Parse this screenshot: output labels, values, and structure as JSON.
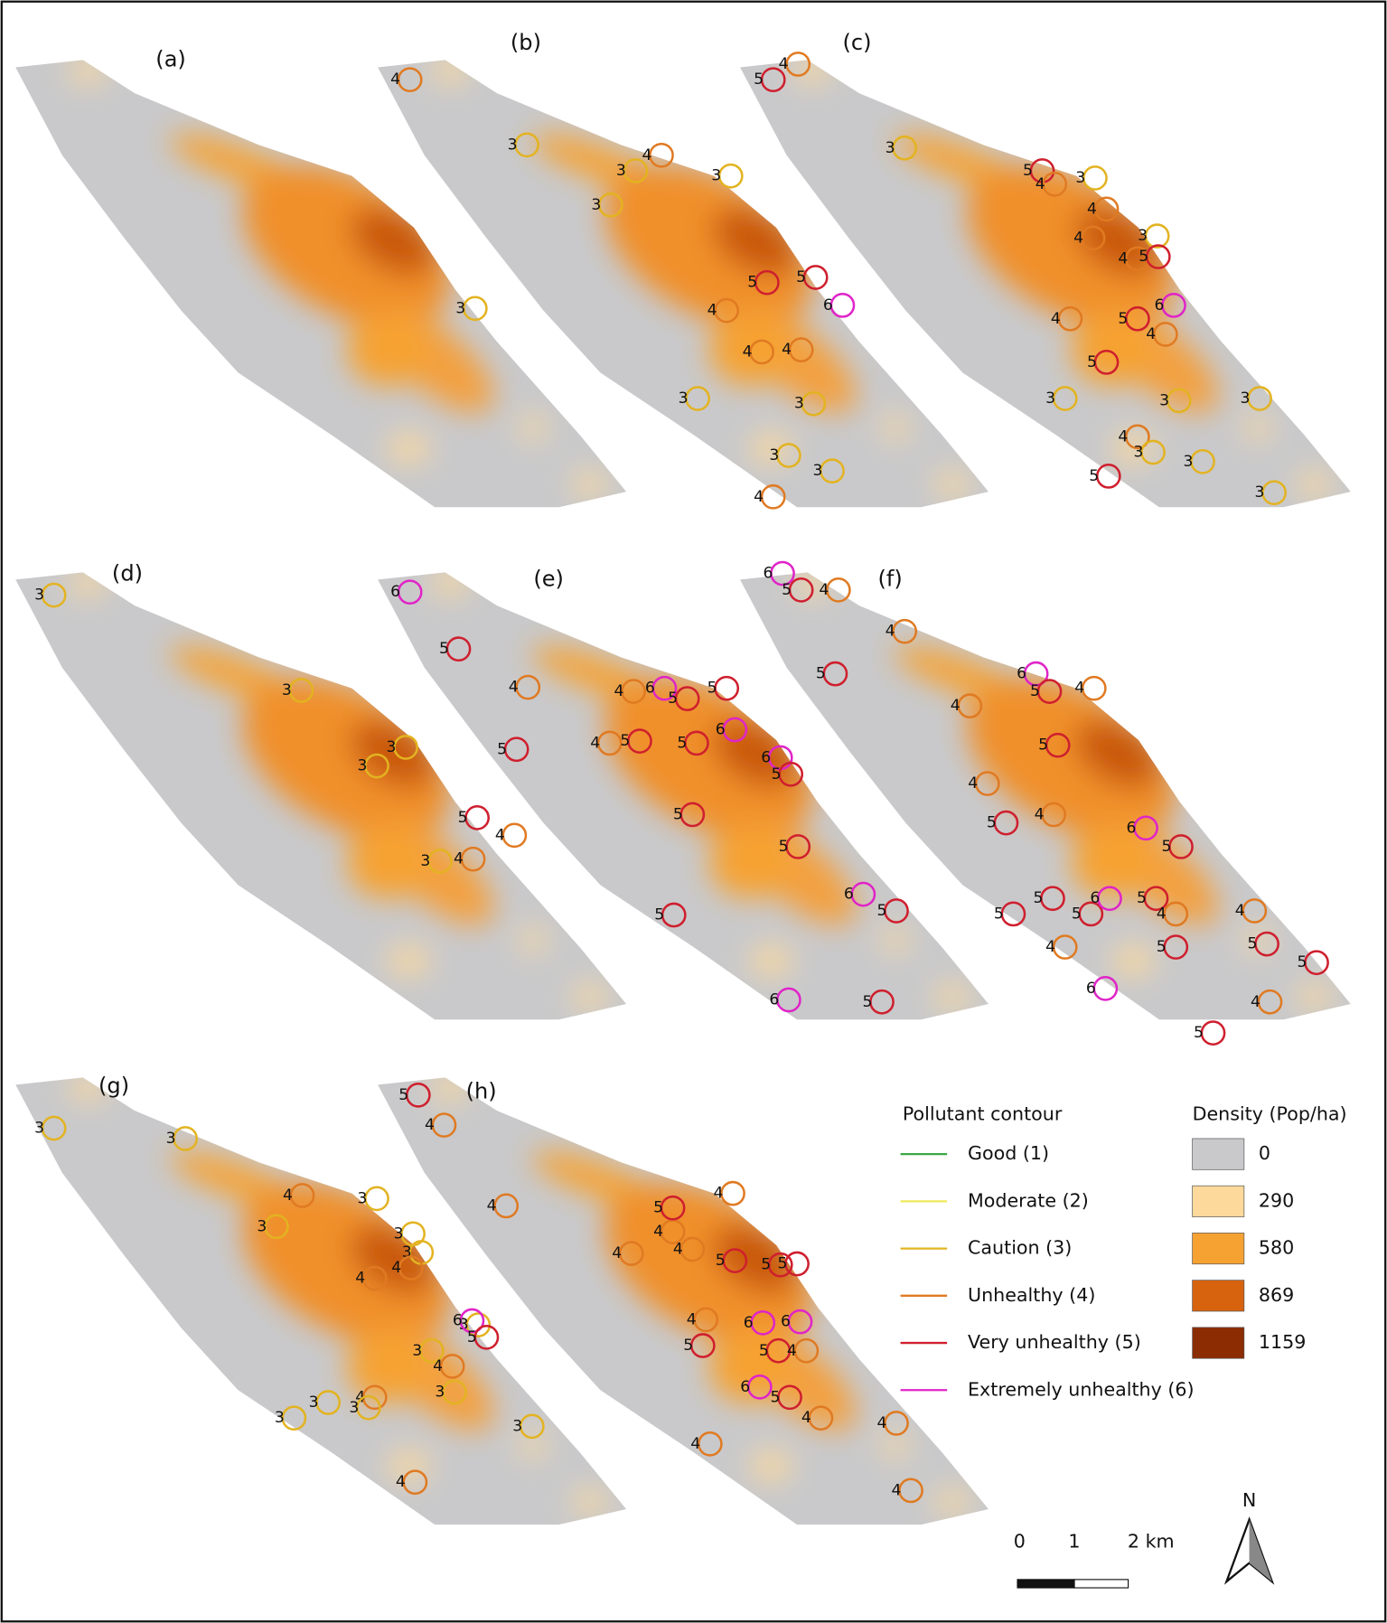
{
  "panels": [
    {
      "label": "(a)",
      "contour_labels": [
        "3"
      ]
    },
    {
      "label": "(b)",
      "contour_labels": [
        "4",
        "3",
        "3",
        "4",
        "3",
        "3",
        "5",
        "5",
        "6",
        "4",
        "4",
        "4",
        "3",
        "3",
        "3",
        "3",
        "4"
      ]
    },
    {
      "label": "(c)",
      "contour_labels": [
        "5",
        "4",
        "3",
        "5",
        "4",
        "3",
        "4",
        "4",
        "3",
        "4",
        "5",
        "6",
        "5",
        "4",
        "4",
        "5",
        "3",
        "3",
        "3",
        "4",
        "3",
        "3",
        "5",
        "3"
      ]
    },
    {
      "label": "(d)",
      "contour_labels": [
        "3",
        "3",
        "3",
        "3",
        "5",
        "4",
        "3",
        "4"
      ]
    },
    {
      "label": "(e)",
      "contour_labels": [
        "6",
        "5",
        "4",
        "5",
        "4",
        "4",
        "5",
        "6",
        "5",
        "5",
        "5",
        "6",
        "6",
        "5",
        "5",
        "5",
        "6",
        "5",
        "5",
        "6",
        "5"
      ]
    },
    {
      "label": "(f)",
      "contour_labels": [
        "6",
        "5",
        "4",
        "5",
        "4",
        "6",
        "5",
        "4",
        "4",
        "5",
        "4",
        "5",
        "4",
        "6",
        "5",
        "5",
        "4",
        "5",
        "5",
        "5",
        "6",
        "4",
        "5",
        "4",
        "5",
        "5",
        "6",
        "4",
        "5"
      ]
    },
    {
      "label": "(g)",
      "contour_labels": [
        "3",
        "3",
        "3",
        "4",
        "3",
        "3",
        "3",
        "4",
        "4",
        "3",
        "6",
        "5",
        "3",
        "4",
        "4",
        "3",
        "3",
        "3",
        "3",
        "3",
        "4"
      ]
    },
    {
      "label": "(h)",
      "contour_labels": [
        "5",
        "4",
        "4",
        "4",
        "4",
        "5",
        "4",
        "4",
        "5",
        "5",
        "5",
        "4",
        "5",
        "6",
        "6",
        "5",
        "4",
        "6",
        "5",
        "4",
        "4",
        "4",
        "4"
      ]
    }
  ],
  "legend": {
    "contour_title": "Pollutant contour",
    "items": [
      {
        "name": "Good (1)",
        "color": "#3aa845"
      },
      {
        "name": "Moderate (2)",
        "color": "#eeea5a"
      },
      {
        "name": "Caution (3)",
        "color": "#e3b321"
      },
      {
        "name": "Unhealthy (4)",
        "color": "#e07a22"
      },
      {
        "name": "Very unhealthy (5)",
        "color": "#cf1f2e"
      },
      {
        "name": "Extremely unhealthy (6)",
        "color": "#e024c8"
      }
    ],
    "density_title": "Density (Pop/ha)",
    "density": [
      {
        "label": "0",
        "color": "#c9c9cb"
      },
      {
        "label": "290",
        "color": "#fdd99c"
      },
      {
        "label": "580",
        "color": "#f6a232"
      },
      {
        "label": "869",
        "color": "#d7630f"
      },
      {
        "label": "1159",
        "color": "#8b2c03"
      }
    ]
  },
  "scale": {
    "labels": [
      "0",
      "1",
      "2 km"
    ]
  },
  "north": "N"
}
